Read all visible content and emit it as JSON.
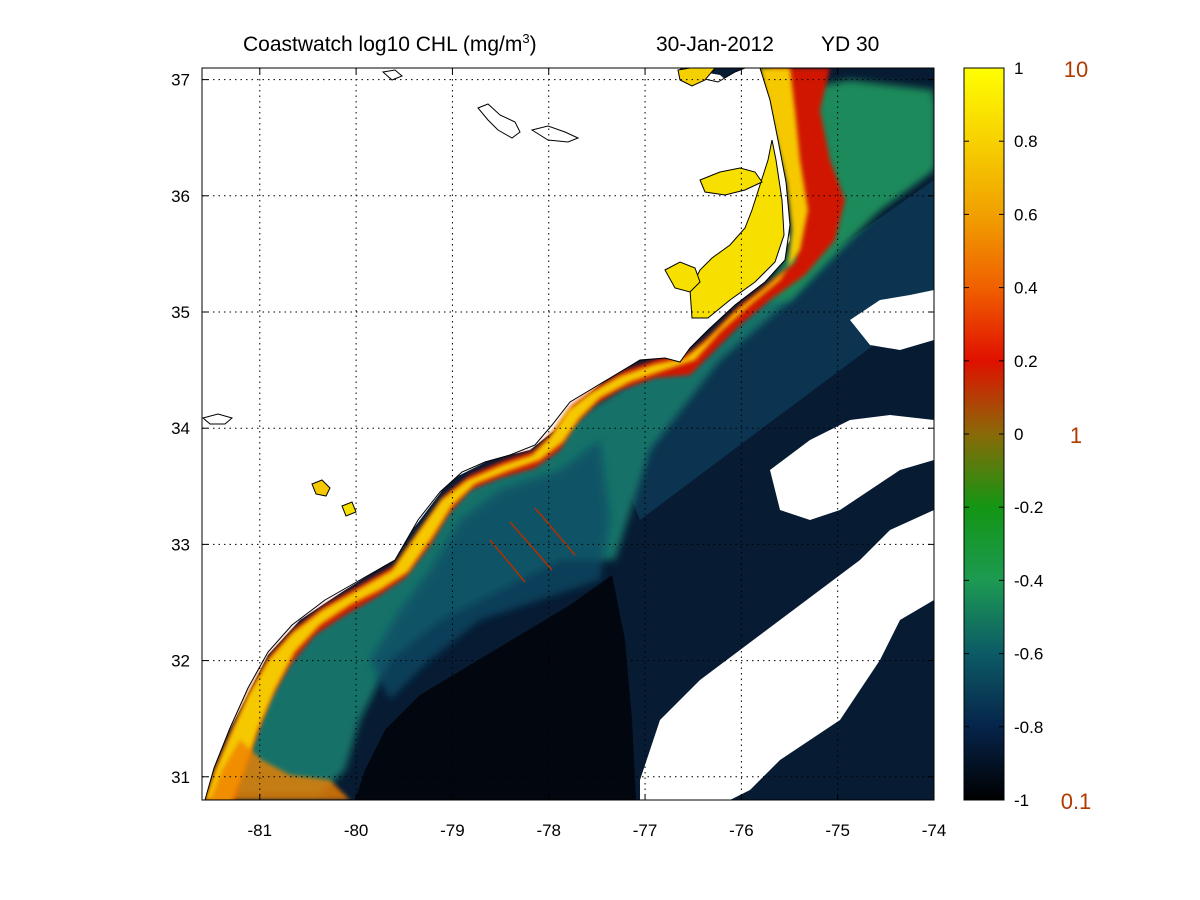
{
  "title": {
    "main_prefix": "Coastwatch  log10  CHL (mg/m",
    "main_sup": "3",
    "main_suffix": ")",
    "date": "30-Jan-2012",
    "yearday": "YD 30"
  },
  "map": {
    "lon_ticks": [
      "-81",
      "-80",
      "-79",
      "-78",
      "-77",
      "-76",
      "-75",
      "-74"
    ],
    "lat_ticks": [
      "37",
      "36",
      "35",
      "34",
      "33",
      "32",
      "31"
    ],
    "lon_values": [
      -81,
      -80,
      -79,
      -78,
      -77,
      -76,
      -75,
      -74
    ],
    "lat_values": [
      37,
      36,
      35,
      34,
      33,
      32,
      31
    ],
    "lon_range": [
      -81.6,
      -74.0
    ],
    "lat_range": [
      30.8,
      37.1
    ],
    "grid": "dotted"
  },
  "colorbar": {
    "tick_labels": [
      "1",
      "0.8",
      "0.6",
      "0.4",
      "0.2",
      "0",
      "-0.2",
      "-0.4",
      "-0.6",
      "-0.8",
      "-1"
    ],
    "tick_values": [
      1,
      0.8,
      0.6,
      0.4,
      0.2,
      0,
      -0.2,
      -0.4,
      -0.6,
      -0.8,
      -1
    ],
    "range": [
      -1,
      1
    ],
    "ref_labels": [
      "10",
      "1",
      "0.1"
    ],
    "ref_values": [
      1,
      0,
      -1
    ],
    "ref_color": "#b03a00",
    "colormap": [
      "#000000",
      "#06244a",
      "#0c5a66",
      "#1c9a52",
      "#139614",
      "#8a6a08",
      "#e01000",
      "#f06000",
      "#f0a000",
      "#f7d100",
      "#ffff00"
    ]
  },
  "palette": {
    "land": "#ffffff",
    "coastline": "#000000",
    "cloud": "#ffffff",
    "offshore": "#06182e",
    "deep": "#020814",
    "shelf_mid": "#15736a",
    "nearshore_high": "#f0b000"
  }
}
